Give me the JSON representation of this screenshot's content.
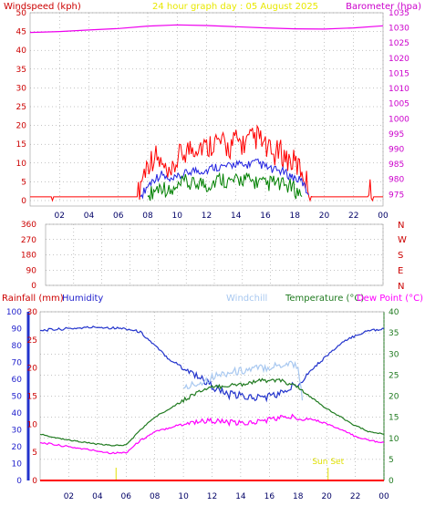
{
  "colors": {
    "windspeed": "#ff0000",
    "windgust_avg": "#2020e0",
    "wind_low": "#008000",
    "barometer": "#ee00ee",
    "humidity": "#2233cc",
    "windchill": "#a8c8f0",
    "temperature": "#1f7a1f",
    "dewpoint": "#ff00ff",
    "rainfall": "#ff0000",
    "title": "#e8e800",
    "axis_red": "#cc0000",
    "axis_magenta": "#cc00cc",
    "grid": "#888888",
    "sun": "#e0e000",
    "humidity_axis": "#1f1fcc",
    "temp_axis": "#1f7a1f"
  },
  "chart_data": [
    {
      "type": "line",
      "title": "24 hour graph day : 05 August 2025",
      "left_axis_label": "Windspeed (kph)",
      "right_axis_label": "Barometer (hpa)",
      "x_ticks": [
        "02",
        "04",
        "06",
        "08",
        "10",
        "12",
        "14",
        "16",
        "18",
        "20",
        "22",
        "00"
      ],
      "ylim_left": [
        0,
        50
      ],
      "yticks_left": [
        0,
        5,
        10,
        15,
        20,
        25,
        30,
        35,
        40,
        45,
        50
      ],
      "ylim_right": [
        973,
        1035
      ],
      "yticks_right": [
        975,
        980,
        985,
        990,
        995,
        1000,
        1005,
        1010,
        1015,
        1020,
        1025,
        1030,
        1035
      ],
      "grid": "dotted",
      "series": [
        {
          "name": "Windspeed (kph)",
          "key": "windspeed",
          "axis": "left",
          "x": [
            0,
            1.5,
            1.55,
            1.6,
            7.3,
            7.6,
            8,
            8.5,
            9,
            9.5,
            10,
            10.5,
            11,
            11.5,
            12,
            12.5,
            13,
            13.5,
            14,
            14.5,
            15,
            15.5,
            16,
            16.5,
            17,
            17.5,
            18,
            18.5,
            18.9,
            19.2,
            23,
            23.2,
            23.3,
            24
          ],
          "y": [
            1,
            1,
            3,
            1,
            1,
            6,
            10,
            12,
            9,
            5,
            11,
            13,
            14,
            15,
            14,
            16,
            15,
            14,
            16,
            15,
            16,
            17,
            14,
            12,
            13,
            11,
            10,
            8,
            4,
            1,
            1,
            4,
            1,
            1
          ]
        },
        {
          "name": "Average wind",
          "key": "windgust_avg",
          "axis": "left",
          "x": [
            7.5,
            8,
            8.5,
            9,
            9.5,
            10,
            10.5,
            11,
            11.5,
            12,
            12.5,
            13,
            13.5,
            14,
            14.5,
            15,
            15.5,
            16,
            16.5,
            17,
            17.5,
            18,
            18.5,
            19
          ],
          "y": [
            1,
            4,
            6,
            7,
            5,
            6,
            7,
            8,
            8,
            8,
            9,
            9,
            9,
            10,
            9,
            10,
            10,
            9,
            8,
            8,
            7,
            6,
            5,
            1
          ]
        },
        {
          "name": "Wind low",
          "key": "wind_low",
          "axis": "left",
          "x": [
            8,
            8.5,
            9,
            9.5,
            10,
            10.5,
            11,
            11.5,
            12,
            12.5,
            13,
            13.5,
            14,
            14.5,
            15,
            15.5,
            16,
            16.5,
            17,
            17.5,
            18,
            18.5
          ],
          "y": [
            1,
            3,
            4,
            2,
            3,
            5,
            4,
            5,
            4,
            5,
            6,
            5,
            5,
            6,
            5,
            5,
            4,
            5,
            4,
            4,
            3,
            1
          ]
        },
        {
          "name": "Barometer (hpa)",
          "key": "barometer",
          "axis": "right",
          "x": [
            0,
            2,
            4,
            6,
            8,
            10,
            12,
            14,
            16,
            18,
            20,
            22,
            24
          ],
          "y": [
            1028.5,
            1028.8,
            1029.3,
            1029.8,
            1030.6,
            1031.0,
            1030.8,
            1030.4,
            1030.0,
            1029.7,
            1029.6,
            1030.0,
            1030.7
          ]
        }
      ]
    },
    {
      "type": "scatter",
      "title": "",
      "x_ticks": [
        "02",
        "04",
        "06",
        "08",
        "10",
        "12",
        "14",
        "16",
        "18",
        "20",
        "22",
        "00"
      ],
      "ylim": [
        0,
        360
      ],
      "yticks": [
        0,
        90,
        180,
        270,
        360
      ],
      "compass_labels": [
        "N",
        "W",
        "S",
        "E",
        "N"
      ],
      "series": []
    },
    {
      "type": "line",
      "title": "",
      "left_axis_label": "Rainfall (mm)",
      "humidity_label": "Humidity",
      "windchill_label": "Windchill",
      "temperature_label": "Temperature (°C)",
      "dewpoint_label": "Dew Point (°C)",
      "x_ticks": [
        "02",
        "04",
        "06",
        "08",
        "10",
        "12",
        "14",
        "16",
        "18",
        "20",
        "22",
        "00"
      ],
      "humidity_ticks": [
        0,
        10,
        20,
        30,
        40,
        50,
        60,
        70,
        80,
        90,
        100
      ],
      "rain_ticks": [
        0,
        5,
        10,
        15,
        20,
        25,
        30
      ],
      "temp_ticks": [
        0,
        5,
        10,
        15,
        20,
        25,
        30,
        35,
        40
      ],
      "ylim_rain": [
        0,
        30
      ],
      "ylim_temp": [
        0,
        40
      ],
      "ylim_humidity": [
        0,
        100
      ],
      "sun_marks": [
        {
          "x": 5.3,
          "label": ""
        },
        {
          "x": 20.1,
          "label": "Sun Set"
        }
      ],
      "series": [
        {
          "name": "Humidity",
          "key": "humidity",
          "axis": "humidity",
          "x": [
            0,
            2,
            4,
            6,
            7,
            8,
            9,
            10,
            11,
            12,
            13,
            14,
            15,
            16,
            17,
            18,
            19,
            20,
            21,
            22,
            23,
            24
          ],
          "y": [
            89,
            90,
            91,
            90,
            88,
            80,
            72,
            67,
            62,
            56,
            51,
            50,
            49,
            50,
            52,
            58,
            66,
            74,
            81,
            86,
            89,
            90
          ]
        },
        {
          "name": "Windchill",
          "key": "windchill",
          "axis": "temp",
          "x": [
            10,
            10.5,
            11,
            12,
            13,
            14,
            15,
            16,
            17,
            17.5,
            18,
            18.3
          ],
          "y": [
            21.5,
            22.5,
            23,
            24.5,
            25.5,
            26,
            26.5,
            27,
            27.5,
            28,
            27,
            19
          ]
        },
        {
          "name": "Temperature (°C)",
          "key": "temperature",
          "axis": "temp",
          "x": [
            0,
            1,
            2,
            3,
            4,
            5,
            6,
            7,
            8,
            9,
            10,
            11,
            12,
            13,
            14,
            15,
            16,
            17,
            18,
            19,
            20,
            21,
            22,
            23,
            24
          ],
          "y": [
            11,
            10.2,
            9.6,
            9.1,
            8.6,
            8.3,
            8.4,
            12,
            15,
            17,
            19,
            21,
            22,
            22.5,
            22.8,
            23.5,
            23.8,
            23.5,
            22,
            19.5,
            17,
            15,
            13,
            11.5,
            11
          ]
        },
        {
          "name": "Dew Point (°C)",
          "key": "dewpoint",
          "axis": "temp",
          "x": [
            0,
            1,
            2,
            3,
            4,
            5,
            6,
            7,
            8,
            9,
            10,
            11,
            12,
            13,
            14,
            15,
            16,
            17,
            18,
            19,
            20,
            21,
            22,
            23,
            24
          ],
          "y": [
            9,
            8.5,
            8,
            7.5,
            7,
            6.5,
            6.6,
            9.5,
            11.5,
            12.5,
            13.5,
            14,
            14.2,
            13.8,
            13.5,
            13.8,
            14.5,
            15,
            15,
            14.5,
            13.5,
            12,
            10.5,
            9.5,
            9
          ]
        },
        {
          "name": "Rainfall (mm)",
          "key": "rainfall",
          "axis": "rain",
          "x": [
            0,
            24
          ],
          "y": [
            0,
            0
          ]
        }
      ]
    }
  ]
}
